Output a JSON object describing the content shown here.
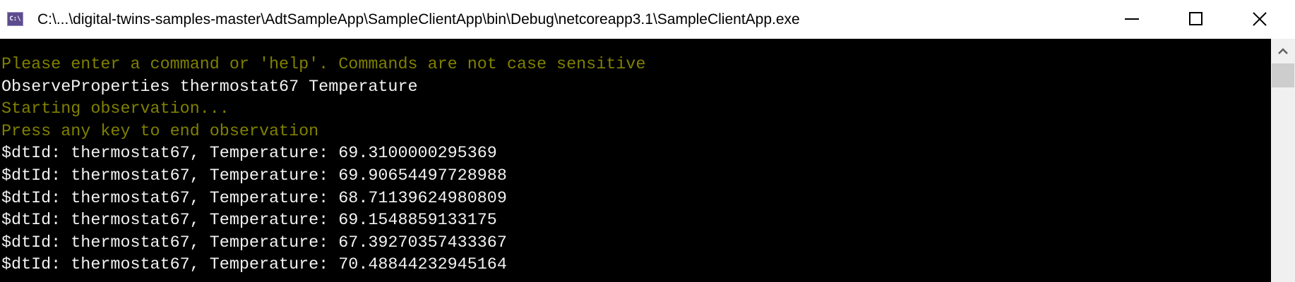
{
  "window": {
    "title": "C:\\...\\digital-twins-samples-master\\AdtSampleApp\\SampleClientApp\\bin\\Debug\\netcoreapp3.1\\SampleClientApp.exe",
    "icon": "console-app-icon",
    "icon_text": "C:\\",
    "controls": [
      "minimize-icon",
      "maximize-icon",
      "close-icon"
    ]
  },
  "colors": {
    "prompt": "#808000",
    "output": "#f2f2f2",
    "background": "#000000"
  },
  "console": {
    "lines": [
      {
        "text": "Please enter a command or 'help'. Commands are not case sensitive",
        "color": "olive"
      },
      {
        "text": "ObserveProperties thermostat67 Temperature",
        "color": "white"
      },
      {
        "text": "Starting observation...",
        "color": "olive"
      },
      {
        "text": "Press any key to end observation",
        "color": "olive"
      },
      {
        "text": "$dtId: thermostat67, Temperature: 69.3100000295369",
        "color": "white"
      },
      {
        "text": "$dtId: thermostat67, Temperature: 69.90654497728988",
        "color": "white"
      },
      {
        "text": "$dtId: thermostat67, Temperature: 68.71139624980809",
        "color": "white"
      },
      {
        "text": "$dtId: thermostat67, Temperature: 69.1548859133175",
        "color": "white"
      },
      {
        "text": "$dtId: thermostat67, Temperature: 67.39270357433367",
        "color": "white"
      },
      {
        "text": "$dtId: thermostat67, Temperature: 70.48844232945164",
        "color": "white"
      }
    ]
  }
}
